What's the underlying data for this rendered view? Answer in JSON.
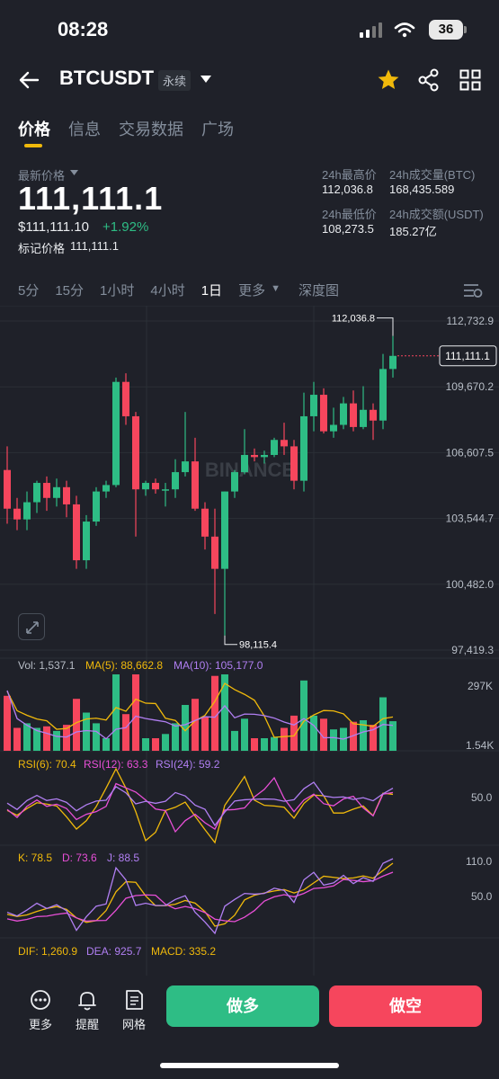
{
  "status": {
    "time": "08:28",
    "battery": "36"
  },
  "header": {
    "symbol": "BTCUSDT",
    "tag": "永续"
  },
  "tabs": [
    "价格",
    "信息",
    "交易数据",
    "广场"
  ],
  "price": {
    "label": "最新价格",
    "last": "111,111.1",
    "usd": "$111,111.10",
    "change": "+1.92%",
    "mark_label": "标记价格",
    "mark": "111,111.1"
  },
  "stats": {
    "high_label": "24h最高价",
    "high": "112,036.8",
    "vol_btc_label": "24h成交量(BTC)",
    "vol_btc": "168,435.589",
    "low_label": "24h最低价",
    "low": "108,273.5",
    "vol_usdt_label": "24h成交额(USDT)",
    "vol_usdt": "185.27亿"
  },
  "intervals": [
    "5分",
    "15分",
    "1小时",
    "4小时",
    "1日",
    "更多",
    "深度图"
  ],
  "chart": {
    "current_price_tag": "111,111.1",
    "high_marker": "112,036.8",
    "low_marker": "98,115.4",
    "watermark": "BINANCE",
    "price_axis": [
      "112,732.9",
      "109,670.2",
      "106,607.5",
      "103,544.7",
      "100,482.0",
      "97,419.3"
    ]
  },
  "volume": {
    "vol": "Vol: 1,537.1",
    "ma5": "MA(5): 88,662.8",
    "ma10": "MA(10): 105,177.0",
    "axis_top": "297K",
    "axis_bottom": "1.54K"
  },
  "rsi": {
    "rsi6": "RSI(6): 70.4",
    "rsi12": "RSI(12): 63.3",
    "rsi24": "RSI(24): 59.2",
    "axis": "50.0"
  },
  "kdj": {
    "k": "K: 78.5",
    "d": "D: 73.6",
    "j": "J: 88.5",
    "axis_top": "110.0",
    "axis_mid": "50.0"
  },
  "macd": {
    "dif": "DIF: 1,260.9",
    "dea": "DEA: 925.7",
    "macd": "MACD: 335.2"
  },
  "bottom": {
    "more": "更多",
    "alert": "提醒",
    "grid": "网格",
    "long": "做多",
    "short": "做空"
  },
  "colors": {
    "up": "#2ebd85",
    "down": "#f6465d",
    "accent": "#f0b90b"
  },
  "chart_data": {
    "type": "candlestick",
    "ylim": [
      97419.3,
      112732.9
    ],
    "candles": [
      [
        105800,
        106900,
        103300,
        104000
      ],
      [
        104000,
        104500,
        103000,
        103500
      ],
      [
        103500,
        104800,
        103000,
        104300
      ],
      [
        104300,
        105300,
        103800,
        105200
      ],
      [
        105200,
        105500,
        103900,
        104500
      ],
      [
        104500,
        105400,
        104100,
        105000
      ],
      [
        105000,
        105300,
        103600,
        104200
      ],
      [
        104200,
        104600,
        101200,
        101600
      ],
      [
        101600,
        103700,
        101200,
        103400
      ],
      [
        103400,
        105000,
        103200,
        104800
      ],
      [
        104800,
        105300,
        104500,
        105100
      ],
      [
        105100,
        110100,
        105000,
        109900
      ],
      [
        109900,
        110300,
        107900,
        108300
      ],
      [
        108300,
        108500,
        102700,
        104900
      ],
      [
        104900,
        105300,
        104600,
        105200
      ],
      [
        105200,
        105400,
        104700,
        104900
      ],
      [
        104900,
        105200,
        104100,
        104900
      ],
      [
        104900,
        106300,
        104500,
        105700
      ],
      [
        105700,
        108500,
        105500,
        106200
      ],
      [
        106200,
        107300,
        103900,
        104000
      ],
      [
        104000,
        104300,
        102100,
        102700
      ],
      [
        102700,
        104000,
        99100,
        101200
      ],
      [
        101200,
        104800,
        98100,
        104800
      ],
      [
        104800,
        105800,
        104500,
        105700
      ],
      [
        105700,
        107700,
        105600,
        106500
      ],
      [
        106500,
        106800,
        106200,
        106400
      ],
      [
        106400,
        106700,
        106100,
        106500
      ],
      [
        106500,
        107300,
        106400,
        107200
      ],
      [
        107200,
        108000,
        106500,
        106900
      ],
      [
        106900,
        107200,
        104900,
        105300
      ],
      [
        105300,
        109400,
        104800,
        108300
      ],
      [
        108300,
        109900,
        107600,
        109300
      ],
      [
        109300,
        109600,
        107500,
        107600
      ],
      [
        107600,
        108700,
        107300,
        107900
      ],
      [
        107900,
        109200,
        107700,
        108900
      ],
      [
        108900,
        109500,
        107600,
        107800
      ],
      [
        107800,
        109700,
        107700,
        108600
      ],
      [
        108600,
        108900,
        107200,
        108100
      ],
      [
        108100,
        111200,
        107700,
        110500
      ],
      [
        110500,
        112036.8,
        110100,
        111111.1
      ]
    ]
  }
}
